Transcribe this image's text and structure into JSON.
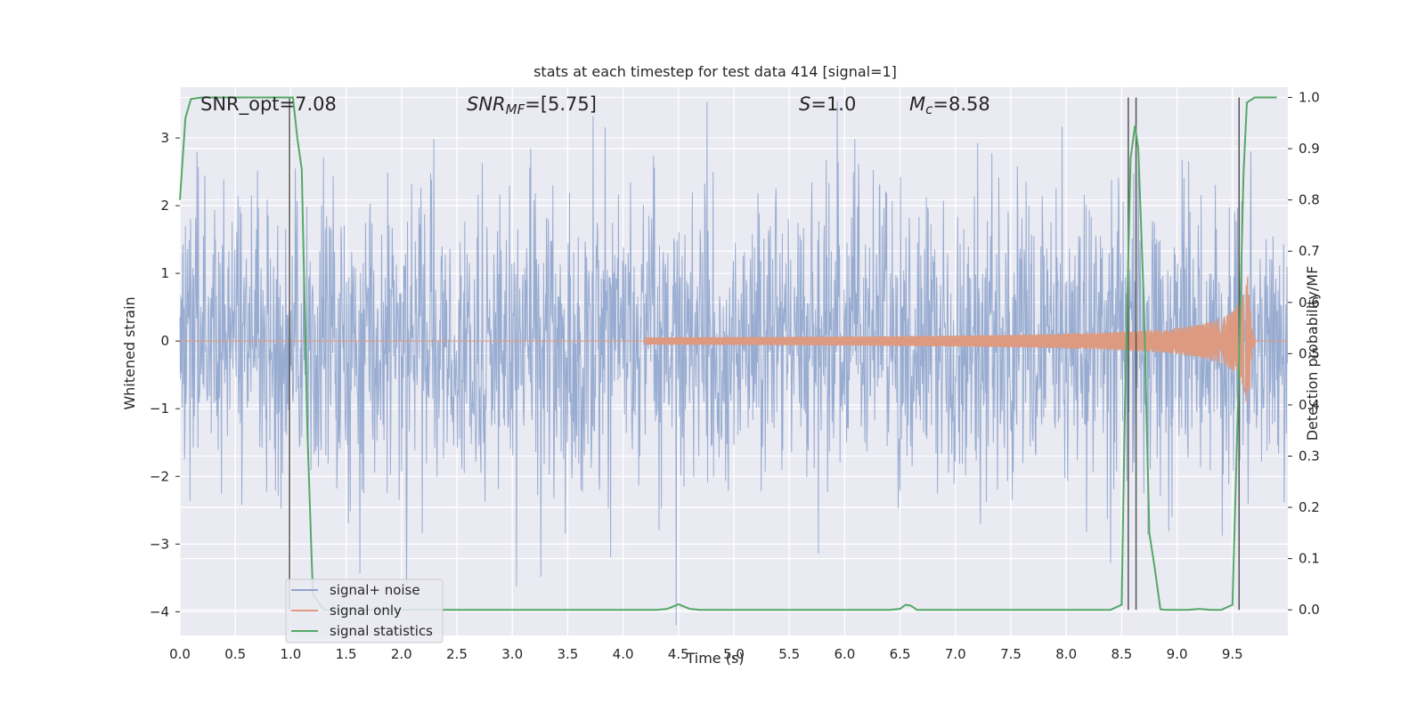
{
  "chart_data": {
    "type": "line",
    "title": "stats at each timestep for test data 414 [signal=1]",
    "xlabel": "Time (s)",
    "ylabel_left": "Whitened strain",
    "ylabel_right": "Detection probability/MF",
    "xlim": [
      0.0,
      10.0
    ],
    "ylim_left": [
      -4.35,
      3.75
    ],
    "ylim_right": [
      -0.05,
      1.02
    ],
    "x_ticks": [
      "0.0",
      "0.5",
      "1.0",
      "1.5",
      "2.0",
      "2.5",
      "3.0",
      "3.5",
      "4.0",
      "4.5",
      "5.0",
      "5.5",
      "6.0",
      "6.5",
      "7.0",
      "7.5",
      "8.0",
      "8.5",
      "9.0",
      "9.5"
    ],
    "y_ticks_left": [
      "3",
      "2",
      "1",
      "0",
      "−1",
      "−2",
      "−3",
      "−4"
    ],
    "y_ticks_right": [
      "1.0",
      "0.9",
      "0.8",
      "0.7",
      "0.6",
      "0.5",
      "0.4",
      "0.3",
      "0.2",
      "0.1",
      "0.0"
    ],
    "grid": true,
    "legend_position": "lower-left",
    "annotations": {
      "snr_opt": "SNR_opt=7.08",
      "snr_mf_name": "SNR",
      "snr_mf_sub": "MF",
      "snr_mf_value": "=[5.75]",
      "s_name": "S",
      "s_value": "=1.0",
      "mc_name": "M",
      "mc_sub": "c",
      "mc_value": "=8.58"
    },
    "series": [
      {
        "name": "signal+ noise",
        "axis": "left",
        "color": "#8fa5cd",
        "description_values": "dense whitened noise, approx amplitude within [-3.6, 3.4]"
      },
      {
        "name": "signal only",
        "axis": "left",
        "color": "#dd9a80",
        "chirp": {
          "start": 4.2,
          "merger": 9.65,
          "max_amplitude": 1.1
        }
      },
      {
        "name": "signal statistics",
        "axis": "right",
        "color": "#55a868",
        "x": [
          0.0,
          0.05,
          0.1,
          0.2,
          0.5,
          0.8,
          0.98,
          1.02,
          1.06,
          1.1,
          1.15,
          1.2,
          1.3,
          1.5,
          2.0,
          2.5,
          3.0,
          3.5,
          4.0,
          4.3,
          4.4,
          4.5,
          4.6,
          4.7,
          5.0,
          5.5,
          6.0,
          6.4,
          6.5,
          6.55,
          6.6,
          6.65,
          6.7,
          6.8,
          7.0,
          7.5,
          8.0,
          8.4,
          8.5,
          8.53,
          8.58,
          8.62,
          8.65,
          8.7,
          8.75,
          8.8,
          8.85,
          8.9,
          9.0,
          9.1,
          9.2,
          9.3,
          9.4,
          9.5,
          9.55,
          9.6,
          9.63,
          9.7,
          9.8,
          9.9
        ],
        "y": [
          0.8,
          0.96,
          0.997,
          1.0,
          1.0,
          1.0,
          1.0,
          1.0,
          0.92,
          0.86,
          0.35,
          0.03,
          0.0,
          0.0,
          0.0,
          0.0,
          0.0,
          0.0,
          0.0,
          0.0,
          0.002,
          0.011,
          0.002,
          0.0,
          0.0,
          0.0,
          0.0,
          0.0,
          0.002,
          0.01,
          0.008,
          0.0,
          0.0,
          0.0,
          0.0,
          0.0,
          0.0,
          0.0,
          0.01,
          0.4,
          0.88,
          0.945,
          0.9,
          0.6,
          0.15,
          0.08,
          0.001,
          0.0,
          0.0,
          0.0,
          0.002,
          0.0,
          0.0,
          0.01,
          0.4,
          0.85,
          0.99,
          1.0,
          1.0,
          1.0
        ]
      }
    ],
    "vertical_lines_x": [
      0.99,
      8.56,
      8.63,
      9.56
    ]
  }
}
